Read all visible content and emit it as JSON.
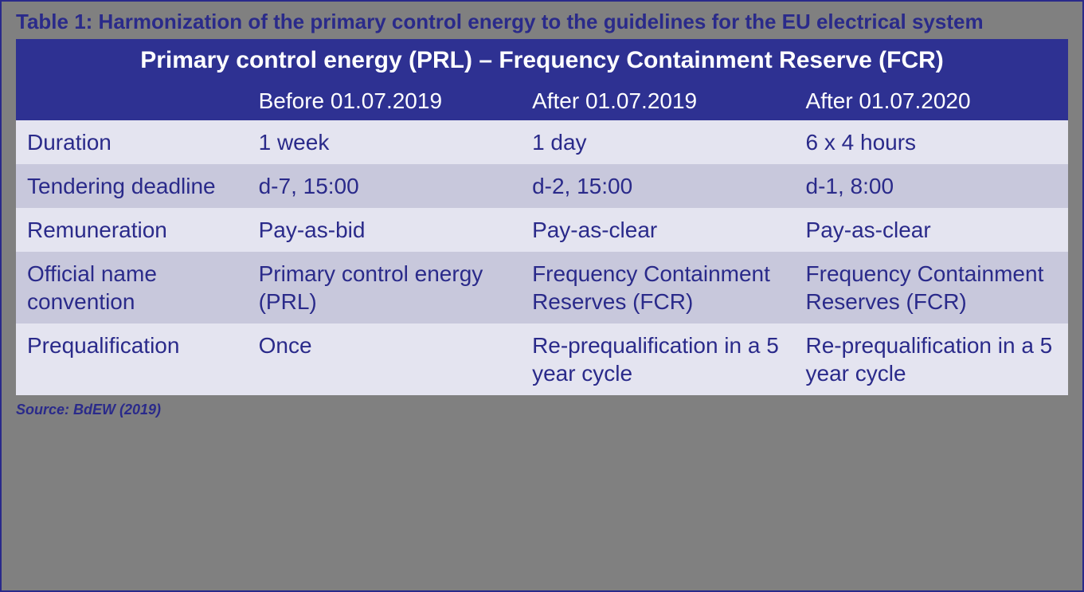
{
  "caption": "Table 1: Harmonization of the primary control energy to the guidelines for the EU electrical system",
  "title": "Primary control energy (PRL) – Frequency Containment Reserve (FCR)",
  "columns": [
    "",
    "Before 01.07.2019",
    "After 01.07.2019",
    "After 01.07.2020"
  ],
  "rows": [
    {
      "label": "Duration",
      "cells": [
        "1 week",
        "1 day",
        "6 x 4 hours"
      ]
    },
    {
      "label": "Tendering deadline",
      "cells": [
        "d-7, 15:00",
        "d-2, 15:00",
        "d-1, 8:00"
      ]
    },
    {
      "label": "Remuneration",
      "cells": [
        "Pay-as-bid",
        "Pay-as-clear",
        "Pay-as-clear"
      ]
    },
    {
      "label": "Official name convention",
      "cells": [
        "Primary control energy (PRL)",
        "Frequency Containment Reserves (FCR)",
        "Frequency Containment Reserves (FCR)"
      ]
    },
    {
      "label": "Prequalification",
      "cells": [
        "Once",
        "Re-prequalification in a 5 year cycle",
        "Re-prequalification in a 5 year cycle"
      ]
    }
  ],
  "source": "Source: BdEW (2019)",
  "style": {
    "frame_border_color": "#2a2a8a",
    "frame_bg": "#808080",
    "caption_color": "#2a2a8a",
    "caption_fontsize": 26,
    "header_bg": "#2e3192",
    "header_text_color": "#ffffff",
    "title_fontsize": 30,
    "column_header_fontsize": 28,
    "body_text_color": "#2a2a8a",
    "body_fontsize": 28,
    "row_odd_bg": "#e4e4f0",
    "row_even_bg": "#c8c8dc",
    "source_fontsize": 18,
    "col_widths_pct": [
      22,
      26,
      26,
      26
    ]
  }
}
